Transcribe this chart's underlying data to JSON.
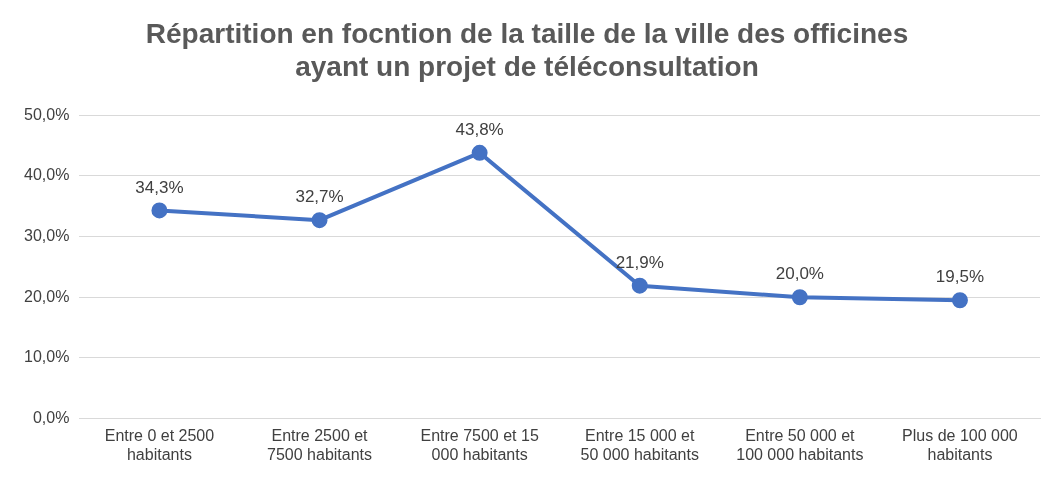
{
  "chart_data": {
    "type": "line",
    "title": "Répartition en focntion de la taille de la ville des officines ayant un projet de téléconsultation",
    "categories": [
      "Entre 0 et 2500 habitants",
      "Entre 2500 et 7500 habitants",
      "Entre 7500 et 15 000 habitants",
      "Entre 15 000 et 50 000 habitants",
      "Entre 50 000 et 100 000 habitants",
      "Plus de 100 000 habitants"
    ],
    "values": [
      34.3,
      32.7,
      43.8,
      21.9,
      20.0,
      19.5
    ],
    "value_labels": [
      "34,3%",
      "32,7%",
      "43,8%",
      "21,9%",
      "20,0%",
      "19,5%"
    ],
    "color": "#4472c4",
    "marker": "circle",
    "line_style": "solid",
    "ylim": [
      0,
      50
    ],
    "yticks": [
      {
        "value": 0,
        "label": "0,0%"
      },
      {
        "value": 10,
        "label": "10,0%"
      },
      {
        "value": 20,
        "label": "20,0%"
      },
      {
        "value": 30,
        "label": "30,0%"
      },
      {
        "value": 40,
        "label": "40,0%"
      },
      {
        "value": 50,
        "label": "50,0%"
      }
    ],
    "grid": "y",
    "legend": false
  }
}
